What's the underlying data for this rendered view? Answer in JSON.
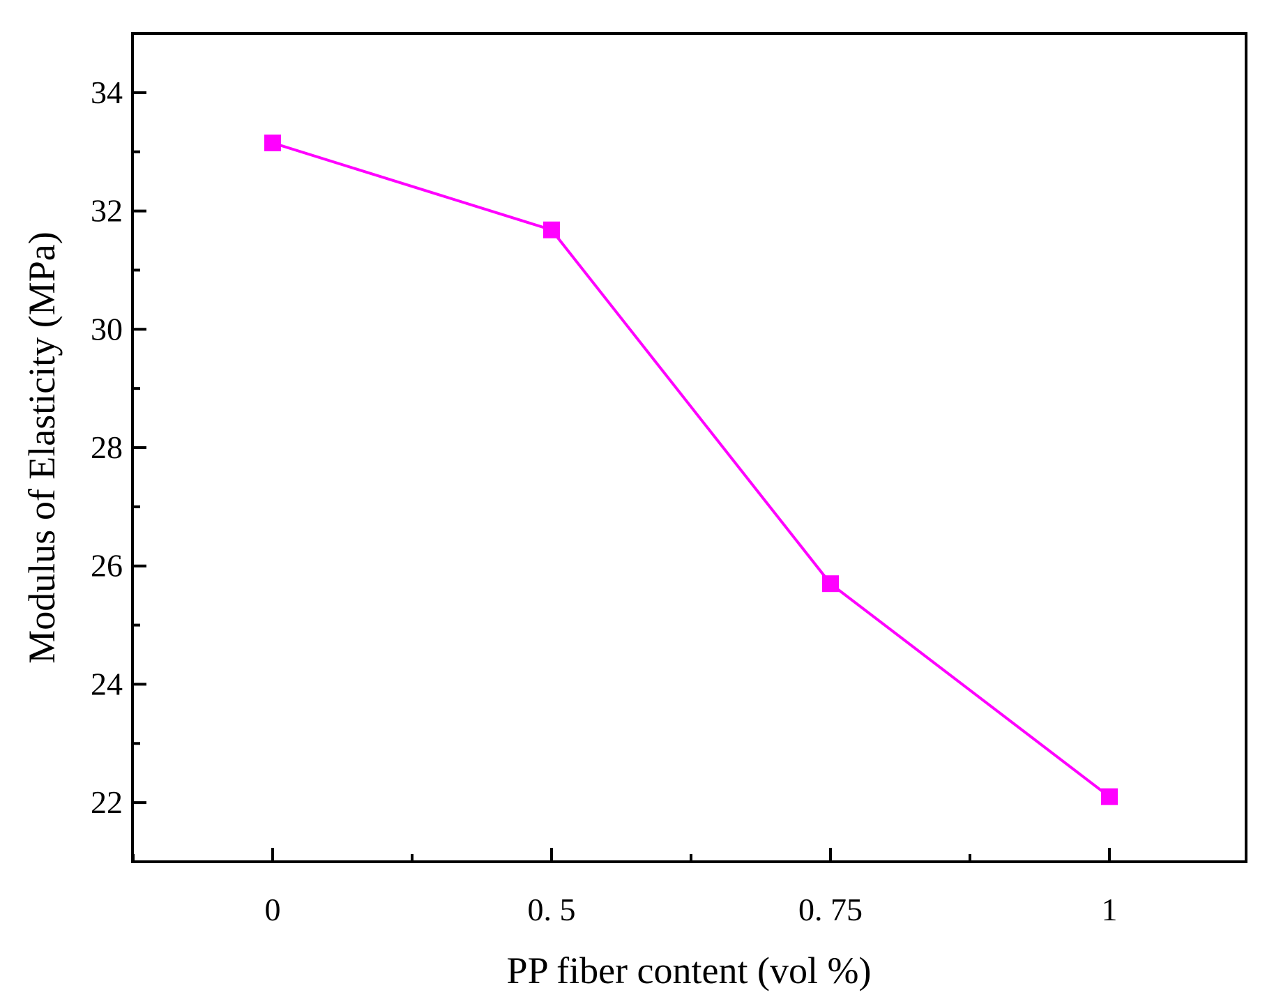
{
  "chart_data": {
    "type": "line",
    "title": "",
    "xlabel": "PP fiber content (vol %)",
    "ylabel": "Modulus of Elasticity (MPa)",
    "categories": [
      "0",
      "0. 5",
      "0. 75",
      "1"
    ],
    "series": [
      {
        "values": [
          33.15,
          31.68,
          25.7,
          22.1
        ],
        "color": "#ff00ff",
        "marker": "square"
      }
    ],
    "yticks": [
      "22",
      "24",
      "26",
      "28",
      "30",
      "32",
      "34"
    ],
    "ylim": [
      21,
      35
    ],
    "grid": false,
    "legend": "none"
  }
}
